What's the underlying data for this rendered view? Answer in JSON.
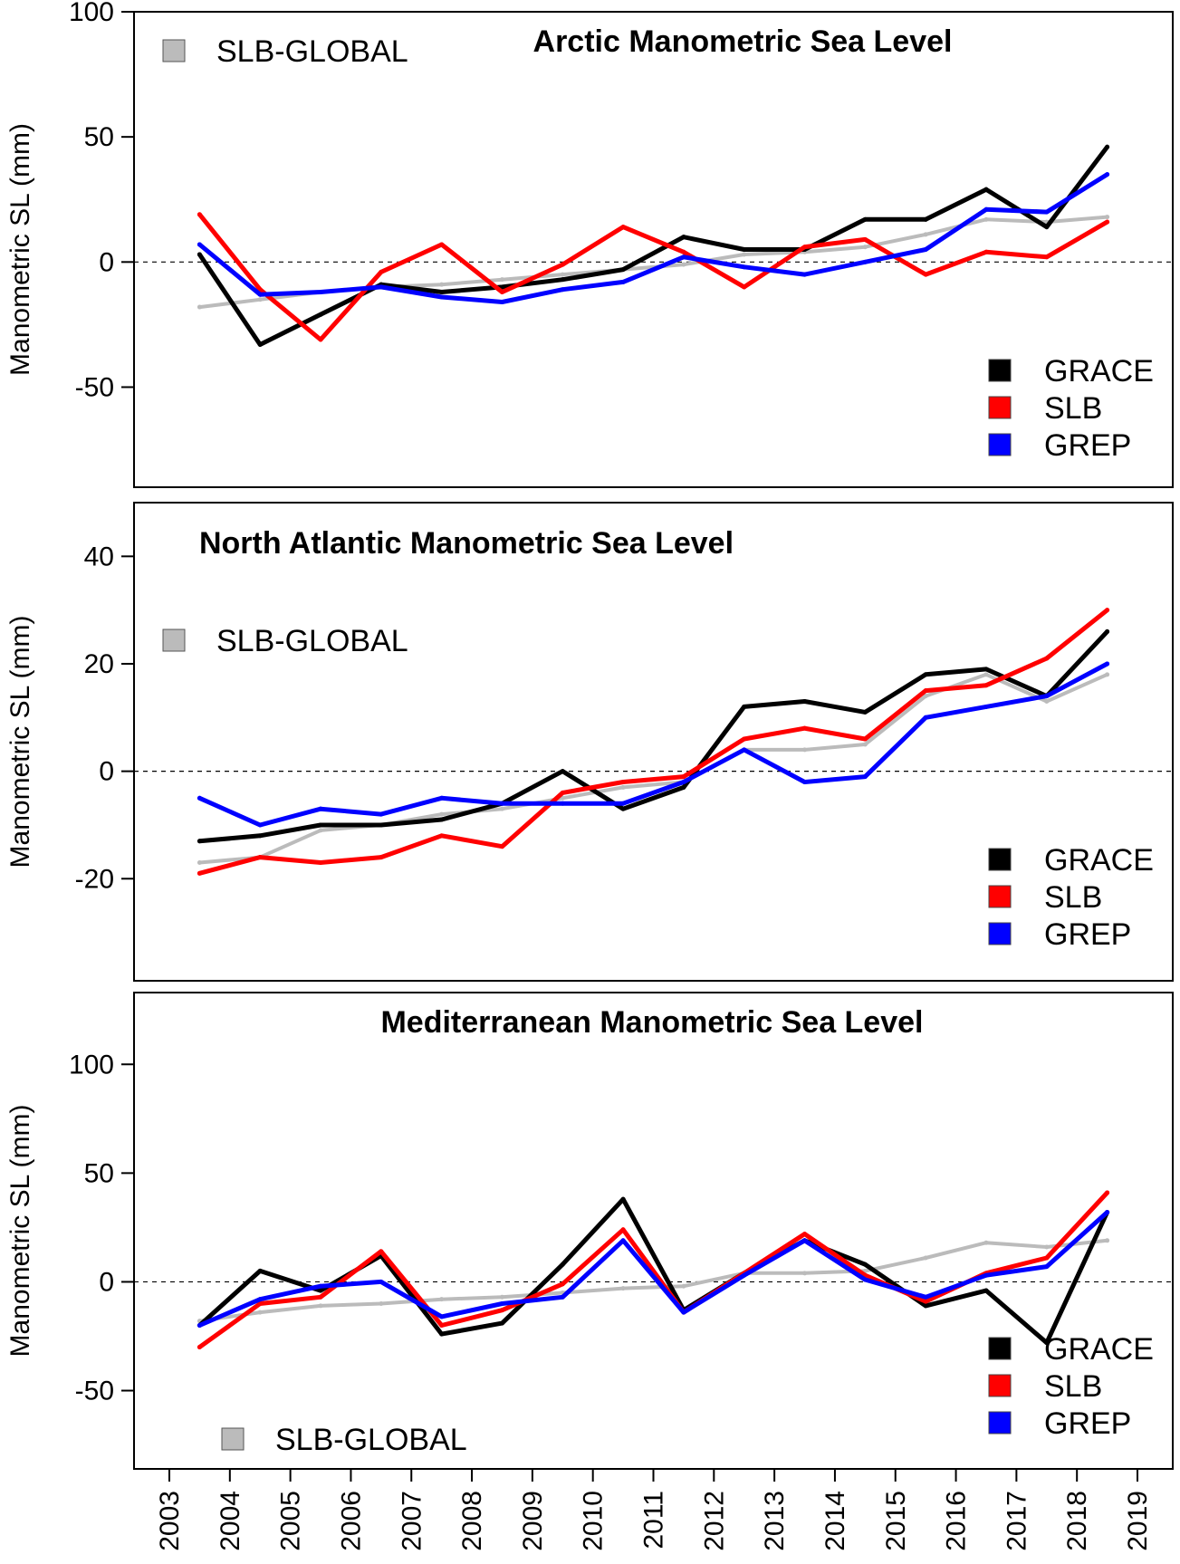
{
  "chart_data": [
    {
      "type": "line",
      "title": "Arctic Manometric Sea Level",
      "ylabel": "Manometric SL (mm)",
      "xlim": [
        2003,
        2019
      ],
      "ylim": [
        -90,
        100
      ],
      "yticks": [
        -50,
        0,
        50,
        100
      ],
      "yticklabels": [
        "-50",
        "0",
        "50",
        "100"
      ],
      "legend": {
        "position": "bottom-right",
        "entries": [
          "GRACE",
          "SLB",
          "GREP"
        ]
      },
      "legend_extra": {
        "position": "top-left",
        "entries": [
          "SLB-GLOBAL"
        ]
      },
      "series": [
        {
          "name": "GRACE",
          "color": "#000000",
          "x": [
            2003.5,
            2004.5,
            2005.5,
            2006.5,
            2007.5,
            2008.5,
            2009.5,
            2010.5,
            2011.5,
            2012.5,
            2013.5,
            2014.5,
            2015.5,
            2016.5,
            2017.5,
            2018.5
          ],
          "values": [
            3,
            -33,
            -21,
            -9,
            -12,
            -10,
            -7,
            -3,
            10,
            5,
            5,
            17,
            17,
            29,
            14,
            46
          ]
        },
        {
          "name": "SLB",
          "color": "#ff0000",
          "x": [
            2003.5,
            2004.5,
            2005.5,
            2006.5,
            2007.5,
            2008.5,
            2009.5,
            2010.5,
            2011.5,
            2012.5,
            2013.5,
            2014.5,
            2015.5,
            2016.5,
            2017.5,
            2018.5
          ],
          "values": [
            19,
            -11,
            -31,
            -4,
            7,
            -12,
            -1,
            14,
            4,
            -10,
            6,
            9,
            -5,
            4,
            2,
            16
          ]
        },
        {
          "name": "GREP",
          "color": "#0000ff",
          "x": [
            2003.5,
            2004.5,
            2005.5,
            2006.5,
            2007.5,
            2008.5,
            2009.5,
            2010.5,
            2011.5,
            2012.5,
            2013.5,
            2014.5,
            2015.5,
            2016.5,
            2017.5,
            2018.5
          ],
          "values": [
            7,
            -13,
            -12,
            -10,
            -14,
            -16,
            -11,
            -8,
            2,
            -2,
            -5,
            0,
            5,
            21,
            20,
            35
          ]
        },
        {
          "name": "SLB-GLOBAL",
          "color": "#bbbbbb",
          "x": [
            2003.5,
            2004.5,
            2005.5,
            2006.5,
            2007.5,
            2008.5,
            2009.5,
            2010.5,
            2011.5,
            2012.5,
            2013.5,
            2014.5,
            2015.5,
            2016.5,
            2017.5,
            2018.5
          ],
          "values": [
            -18,
            -15,
            -12,
            -10,
            -9,
            -7,
            -5,
            -3,
            -1,
            3,
            4,
            6,
            11,
            17,
            16,
            18
          ]
        }
      ]
    },
    {
      "type": "line",
      "title": "North Atlantic Manometric Sea Level",
      "ylabel": "Manometric SL (mm)",
      "xlim": [
        2003,
        2019
      ],
      "ylim": [
        -39,
        50
      ],
      "yticks": [
        -20,
        0,
        20,
        40
      ],
      "yticklabels": [
        "-20",
        "0",
        "20",
        "40"
      ],
      "legend": {
        "position": "bottom-right",
        "entries": [
          "GRACE",
          "SLB",
          "GREP"
        ]
      },
      "legend_extra": {
        "position": "top-left",
        "entries": [
          "SLB-GLOBAL"
        ]
      },
      "series": [
        {
          "name": "GRACE",
          "color": "#000000",
          "x": [
            2003.5,
            2004.5,
            2005.5,
            2006.5,
            2007.5,
            2008.5,
            2009.5,
            2010.5,
            2011.5,
            2012.5,
            2013.5,
            2014.5,
            2015.5,
            2016.5,
            2017.5,
            2018.5
          ],
          "values": [
            -13,
            -12,
            -10,
            -10,
            -9,
            -6,
            0,
            -7,
            -3,
            12,
            13,
            11,
            18,
            19,
            14,
            26
          ]
        },
        {
          "name": "SLB",
          "color": "#ff0000",
          "x": [
            2003.5,
            2004.5,
            2005.5,
            2006.5,
            2007.5,
            2008.5,
            2009.5,
            2010.5,
            2011.5,
            2012.5,
            2013.5,
            2014.5,
            2015.5,
            2016.5,
            2017.5,
            2018.5
          ],
          "values": [
            -19,
            -16,
            -17,
            -16,
            -12,
            -14,
            -4,
            -2,
            -1,
            6,
            8,
            6,
            15,
            16,
            21,
            30
          ]
        },
        {
          "name": "GREP",
          "color": "#0000ff",
          "x": [
            2003.5,
            2004.5,
            2005.5,
            2006.5,
            2007.5,
            2008.5,
            2009.5,
            2010.5,
            2011.5,
            2012.5,
            2013.5,
            2014.5,
            2015.5,
            2016.5,
            2017.5,
            2018.5
          ],
          "values": [
            -5,
            -10,
            -7,
            -8,
            -5,
            -6,
            -6,
            -6,
            -2,
            4,
            -2,
            -1,
            10,
            12,
            14,
            20
          ]
        },
        {
          "name": "SLB-GLOBAL",
          "color": "#bbbbbb",
          "x": [
            2003.5,
            2004.5,
            2005.5,
            2006.5,
            2007.5,
            2008.5,
            2009.5,
            2010.5,
            2011.5,
            2012.5,
            2013.5,
            2014.5,
            2015.5,
            2016.5,
            2017.5,
            2018.5
          ],
          "values": [
            -17,
            -16,
            -11,
            -10,
            -8,
            -7,
            -5,
            -3,
            -2,
            4,
            4,
            5,
            14,
            18,
            13,
            18
          ]
        }
      ]
    },
    {
      "type": "line",
      "title": "Mediterranean Manometric Sea Level",
      "ylabel": "Manometric SL (mm)",
      "xlim": [
        2003,
        2019
      ],
      "ylim": [
        -86,
        133
      ],
      "yticks": [
        -50,
        0,
        50,
        100
      ],
      "yticklabels": [
        "-50",
        "0",
        "50",
        "100"
      ],
      "xticks": [
        2003,
        2004,
        2005,
        2006,
        2007,
        2008,
        2009,
        2010,
        2011,
        2012,
        2013,
        2014,
        2015,
        2016,
        2017,
        2018,
        2019
      ],
      "xticklabels": [
        "2003",
        "2004",
        "2005",
        "2006",
        "2007",
        "2008",
        "2009",
        "2010",
        "2011",
        "2012",
        "2013",
        "2014",
        "2015",
        "2016",
        "2017",
        "2018",
        "2019"
      ],
      "legend": {
        "position": "bottom-right",
        "entries": [
          "GRACE",
          "SLB",
          "GREP"
        ]
      },
      "legend_extra": {
        "position": "bottom-left",
        "entries": [
          "SLB-GLOBAL"
        ]
      },
      "series": [
        {
          "name": "GRACE",
          "color": "#000000",
          "x": [
            2003.5,
            2004.5,
            2005.5,
            2006.5,
            2007.5,
            2008.5,
            2009.5,
            2010.5,
            2011.5,
            2012.5,
            2013.5,
            2014.5,
            2015.5,
            2016.5,
            2017.5,
            2018.5
          ],
          "values": [
            -20,
            5,
            -4,
            12,
            -24,
            -19,
            8,
            38,
            -13,
            4,
            19,
            8,
            -11,
            -4,
            -28,
            32
          ]
        },
        {
          "name": "SLB",
          "color": "#ff0000",
          "x": [
            2003.5,
            2004.5,
            2005.5,
            2006.5,
            2007.5,
            2008.5,
            2009.5,
            2010.5,
            2011.5,
            2012.5,
            2013.5,
            2014.5,
            2015.5,
            2016.5,
            2017.5,
            2018.5
          ],
          "values": [
            -30,
            -10,
            -7,
            14,
            -20,
            -13,
            -1,
            24,
            -14,
            4,
            22,
            3,
            -9,
            4,
            11,
            41
          ]
        },
        {
          "name": "GREP",
          "color": "#0000ff",
          "x": [
            2003.5,
            2004.5,
            2005.5,
            2006.5,
            2007.5,
            2008.5,
            2009.5,
            2010.5,
            2011.5,
            2012.5,
            2013.5,
            2014.5,
            2015.5,
            2016.5,
            2017.5,
            2018.5
          ],
          "values": [
            -20,
            -8,
            -2,
            0,
            -16,
            -10,
            -7,
            19,
            -14,
            3,
            19,
            1,
            -7,
            3,
            7,
            32
          ]
        },
        {
          "name": "SLB-GLOBAL",
          "color": "#bbbbbb",
          "x": [
            2003.5,
            2004.5,
            2005.5,
            2006.5,
            2007.5,
            2008.5,
            2009.5,
            2010.5,
            2011.5,
            2012.5,
            2013.5,
            2014.5,
            2015.5,
            2016.5,
            2017.5,
            2018.5
          ],
          "values": [
            -18,
            -14,
            -11,
            -10,
            -8,
            -7,
            -5,
            -3,
            -2,
            4,
            4,
            5,
            11,
            18,
            16,
            19
          ]
        }
      ]
    }
  ]
}
